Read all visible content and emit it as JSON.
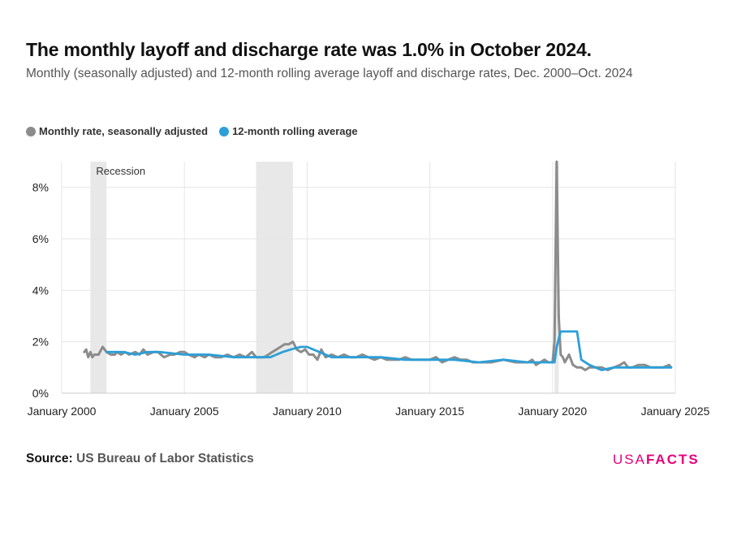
{
  "header": {
    "title": "The monthly layoff and discharge rate was 1.0% in October 2024.",
    "subtitle": "Monthly (seasonally adjusted) and 12-month rolling average layoff and discharge rates, Dec. 2000–Oct. 2024"
  },
  "legend": {
    "monthly_label": "Monthly rate, seasonally adjusted",
    "rolling_label": "12-month rolling average"
  },
  "footer": {
    "source_label": "Source:",
    "source_text": "US Bureau of Labor Statistics",
    "brand_a": "USA",
    "brand_b": "FACTS"
  },
  "colors": {
    "monthly": "#8c8c8c",
    "rolling": "#2a9fd8",
    "recession": "#e8e8e8",
    "brand": "#e6007e"
  },
  "chart_data": {
    "type": "line",
    "xlim": [
      2000.0,
      2025.0
    ],
    "ylim": [
      0,
      9
    ],
    "y_ticks": [
      0,
      2,
      4,
      6,
      8
    ],
    "y_tick_labels": [
      "0%",
      "2%",
      "4%",
      "6%",
      "8%"
    ],
    "x_ticks": [
      2000,
      2005,
      2010,
      2015,
      2020,
      2025
    ],
    "x_tick_labels": [
      "January 2000",
      "January 2005",
      "January 2010",
      "January 2015",
      "January 2020",
      "January 2025"
    ],
    "grid": true,
    "legend_placement": "top-left",
    "recession_label": "Recession",
    "recessions": [
      [
        2001.17,
        2001.83
      ],
      [
        2007.92,
        2009.42
      ],
      [
        2020.08,
        2020.25
      ]
    ],
    "series": [
      {
        "name": "Monthly rate, seasonally adjusted",
        "x": [
          2000.92,
          2001.0,
          2001.08,
          2001.17,
          2001.25,
          2001.33,
          2001.5,
          2001.67,
          2001.75,
          2001.83,
          2002.0,
          2002.17,
          2002.25,
          2002.42,
          2002.58,
          2002.75,
          2003.0,
          2003.17,
          2003.33,
          2003.5,
          2003.75,
          2003.92,
          2004.17,
          2004.42,
          2004.58,
          2004.83,
          2005.0,
          2005.17,
          2005.42,
          2005.58,
          2005.83,
          2006.0,
          2006.25,
          2006.5,
          2006.75,
          2007.0,
          2007.25,
          2007.5,
          2007.75,
          2007.92,
          2008.25,
          2008.42,
          2008.58,
          2008.75,
          2008.92,
          2009.08,
          2009.25,
          2009.42,
          2009.58,
          2009.75,
          2009.92,
          2010.08,
          2010.25,
          2010.42,
          2010.58,
          2010.75,
          2011.0,
          2011.25,
          2011.5,
          2011.75,
          2012.0,
          2012.25,
          2012.5,
          2012.75,
          2013.0,
          2013.25,
          2013.5,
          2013.75,
          2014.0,
          2014.25,
          2014.5,
          2014.75,
          2015.0,
          2015.25,
          2015.5,
          2015.75,
          2016.0,
          2016.25,
          2016.5,
          2016.75,
          2017.0,
          2017.5,
          2018.0,
          2018.5,
          2019.0,
          2019.17,
          2019.33,
          2019.5,
          2019.67,
          2019.83,
          2020.0,
          2020.08,
          2020.17,
          2020.25,
          2020.33,
          2020.42,
          2020.5,
          2020.67,
          2020.83,
          2021.0,
          2021.17,
          2021.33,
          2021.5,
          2021.75,
          2022.0,
          2022.25,
          2022.5,
          2022.75,
          2022.92,
          2023.08,
          2023.25,
          2023.5,
          2023.75,
          2024.0,
          2024.25,
          2024.5,
          2024.75,
          2024.83
        ],
        "values": [
          1.6,
          1.7,
          1.4,
          1.6,
          1.4,
          1.5,
          1.5,
          1.8,
          1.7,
          1.6,
          1.5,
          1.5,
          1.6,
          1.5,
          1.6,
          1.5,
          1.6,
          1.5,
          1.7,
          1.5,
          1.6,
          1.6,
          1.4,
          1.5,
          1.5,
          1.6,
          1.6,
          1.5,
          1.4,
          1.5,
          1.4,
          1.5,
          1.4,
          1.4,
          1.5,
          1.4,
          1.5,
          1.4,
          1.6,
          1.4,
          1.4,
          1.5,
          1.6,
          1.7,
          1.8,
          1.9,
          1.9,
          2.0,
          1.7,
          1.6,
          1.7,
          1.5,
          1.5,
          1.3,
          1.7,
          1.4,
          1.5,
          1.4,
          1.5,
          1.4,
          1.4,
          1.5,
          1.4,
          1.3,
          1.4,
          1.3,
          1.3,
          1.3,
          1.4,
          1.3,
          1.3,
          1.3,
          1.3,
          1.4,
          1.2,
          1.3,
          1.4,
          1.3,
          1.3,
          1.2,
          1.2,
          1.2,
          1.3,
          1.2,
          1.2,
          1.3,
          1.1,
          1.2,
          1.3,
          1.2,
          1.2,
          2.0,
          9.0,
          3.0,
          1.5,
          1.4,
          1.2,
          1.5,
          1.1,
          1.0,
          1.0,
          0.9,
          1.0,
          1.0,
          1.0,
          0.9,
          1.0,
          1.1,
          1.2,
          1.0,
          1.0,
          1.1,
          1.1,
          1.0,
          1.0,
          1.0,
          1.1,
          1.0
        ]
      },
      {
        "name": "12-month rolling average",
        "x": [
          2001.83,
          2002.5,
          2003.0,
          2003.5,
          2004.0,
          2005.0,
          2006.0,
          2007.0,
          2007.5,
          2008.0,
          2008.5,
          2008.75,
          2009.0,
          2009.33,
          2009.75,
          2010.0,
          2010.5,
          2011.0,
          2012.0,
          2013.0,
          2014.0,
          2015.0,
          2016.0,
          2017.0,
          2018.0,
          2019.0,
          2020.0,
          2020.08,
          2020.17,
          2020.33,
          2021.0,
          2021.17,
          2021.5,
          2021.75,
          2022.0,
          2022.5,
          2023.0,
          2023.5,
          2024.0,
          2024.83
        ],
        "values": [
          1.6,
          1.6,
          1.5,
          1.6,
          1.6,
          1.5,
          1.5,
          1.4,
          1.4,
          1.4,
          1.4,
          1.5,
          1.6,
          1.7,
          1.8,
          1.8,
          1.6,
          1.4,
          1.4,
          1.4,
          1.3,
          1.3,
          1.3,
          1.2,
          1.3,
          1.2,
          1.2,
          1.2,
          1.8,
          2.4,
          2.4,
          1.3,
          1.1,
          1.0,
          0.9,
          1.0,
          1.0,
          1.0,
          1.0,
          1.0
        ]
      }
    ]
  }
}
